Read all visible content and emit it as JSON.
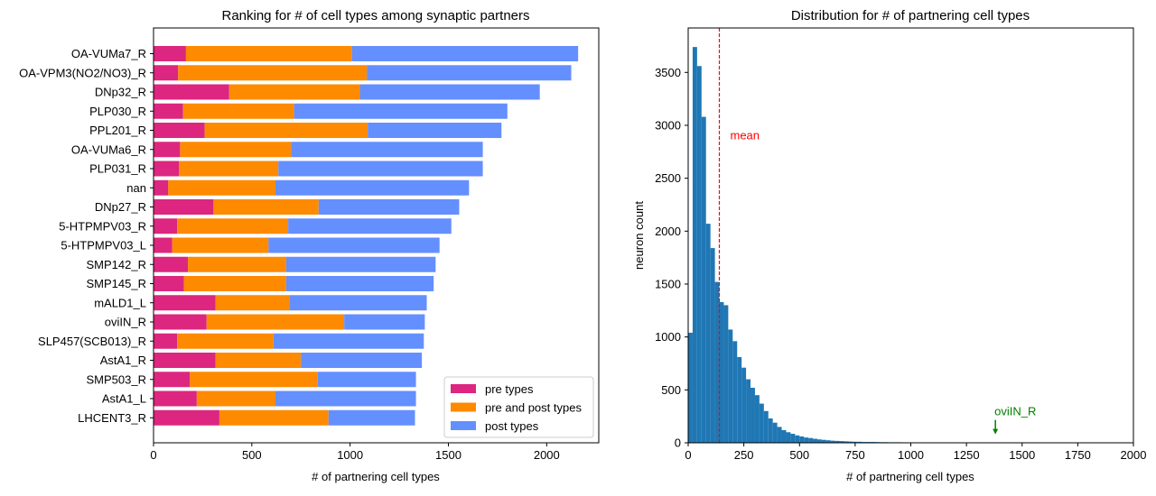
{
  "chart_data": [
    {
      "type": "bar",
      "orientation": "horizontal",
      "stacked": true,
      "title": "Ranking for # of cell types among synaptic partners",
      "xlabel": "# of partnering cell types",
      "ylabel": "",
      "xlim": [
        0,
        2265
      ],
      "xticks": [
        0,
        500,
        1000,
        1500,
        2000
      ],
      "legend_position": "lower right",
      "categories": [
        "OA-VUMa7_R",
        "OA-VPM3(NO2/NO3)_R",
        "DNp32_R",
        "PLP030_R",
        "PPL201_R",
        "OA-VUMa6_R",
        "PLP031_R",
        "nan",
        "DNp27_R",
        "5-HTPMPV03_R",
        "5-HTPMPV03_L",
        "SMP142_R",
        "SMP145_R",
        "mALD1_L",
        "oviIN_R",
        "SLP457(SCB013)_R",
        "AstA1_R",
        "SMP503_R",
        "AstA1_L",
        "LHCENT3_R"
      ],
      "series": [
        {
          "name": "pre types",
          "color": "#dc267f",
          "values": [
            165,
            125,
            385,
            150,
            260,
            135,
            130,
            75,
            305,
            120,
            95,
            175,
            155,
            315,
            270,
            120,
            315,
            185,
            220,
            335
          ]
        },
        {
          "name": "pre and post types",
          "color": "#fe8a00",
          "values": [
            845,
            960,
            665,
            565,
            830,
            565,
            505,
            545,
            535,
            565,
            490,
            500,
            520,
            375,
            700,
            490,
            435,
            650,
            400,
            555
          ]
        },
        {
          "name": "post types",
          "color": "#648fff",
          "values": [
            1150,
            1040,
            915,
            1085,
            680,
            975,
            1040,
            985,
            715,
            830,
            870,
            760,
            750,
            700,
            410,
            765,
            615,
            500,
            715,
            440
          ]
        }
      ]
    },
    {
      "type": "histogram",
      "title": "Distribution for # of partnering cell types",
      "xlabel": "# of partnering cell types",
      "ylabel": "neuron count",
      "xlim": [
        0,
        2000
      ],
      "ylim": [
        0,
        3920
      ],
      "xticks": [
        0,
        250,
        500,
        750,
        1000,
        1250,
        1500,
        1750,
        2000
      ],
      "yticks": [
        0,
        500,
        1000,
        1500,
        2000,
        2500,
        3000,
        3500
      ],
      "bar_color": "#1f77b4",
      "bin_width": 20,
      "bin_start": 0,
      "counts": [
        1040,
        3740,
        3560,
        3080,
        2070,
        1840,
        1520,
        1330,
        1300,
        1070,
        960,
        810,
        710,
        600,
        520,
        450,
        370,
        300,
        230,
        190,
        150,
        120,
        100,
        85,
        70,
        60,
        50,
        45,
        38,
        32,
        28,
        24,
        20,
        18,
        16,
        14,
        12,
        10,
        10,
        8,
        8,
        8,
        7,
        6,
        6,
        5,
        5,
        5,
        4,
        4,
        4,
        3,
        3,
        3,
        3,
        3,
        3,
        3,
        2,
        2,
        2,
        2,
        2,
        2,
        2,
        2,
        2,
        2,
        1,
        1,
        1,
        1,
        1,
        1,
        1,
        1,
        1,
        1,
        1,
        1,
        1,
        1,
        1,
        1,
        1,
        1,
        1,
        1,
        1,
        1
      ],
      "annotations": [
        {
          "label": "mean",
          "x": 140,
          "y": 2900,
          "color": "#ff0000",
          "line_style": "dashed"
        },
        {
          "label": "oviIN_R",
          "x": 1380,
          "y": 250,
          "color": "#008000",
          "arrow_to_y": 80
        }
      ]
    }
  ]
}
